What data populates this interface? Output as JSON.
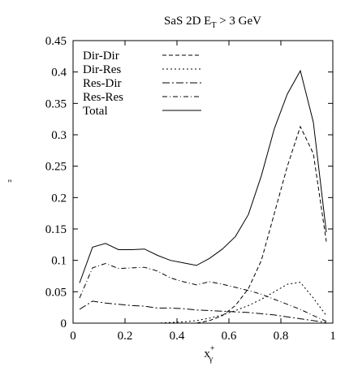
{
  "chart_data": {
    "type": "line",
    "title": "SaS 2D E",
    "title_sub": "T",
    "title_rest": " > 3 GeV",
    "ylabel": "\"",
    "xlabel": "x",
    "xlabel_sup": "+",
    "xlabel_sub": "γ",
    "xlim": [
      0,
      1
    ],
    "ylim": [
      0,
      0.45
    ],
    "x_ticks": [
      "0",
      "0.2",
      "0.4",
      "0.6",
      "0.8",
      "1"
    ],
    "y_ticks": [
      "0",
      "0.05",
      "0.1",
      "0.15",
      "0.2",
      "0.25",
      "0.3",
      "0.35",
      "0.4",
      "0.45"
    ],
    "grid": false,
    "legend_position": "top-left",
    "x": [
      0.025,
      0.075,
      0.125,
      0.175,
      0.225,
      0.275,
      0.325,
      0.375,
      0.425,
      0.475,
      0.525,
      0.575,
      0.625,
      0.675,
      0.725,
      0.775,
      0.825,
      0.875,
      0.925,
      0.975
    ],
    "series": [
      {
        "name": "Dir-Dir",
        "dash": "5,3",
        "values": [
          0.0,
          0.0,
          0.0,
          0.0,
          0.0,
          0.0,
          0.0,
          0.0,
          0.0,
          0.0,
          0.004,
          0.012,
          0.028,
          0.055,
          0.1,
          0.175,
          0.25,
          0.313,
          0.27,
          0.13
        ]
      },
      {
        "name": "Dir-Res",
        "dash": "2,3",
        "values": [
          0.0,
          0.0,
          0.0,
          0.0,
          0.0,
          0.0,
          0.0,
          0.001,
          0.002,
          0.004,
          0.008,
          0.013,
          0.02,
          0.028,
          0.038,
          0.05,
          0.062,
          0.065,
          0.04,
          0.012
        ]
      },
      {
        "name": "Res-Dir",
        "dash": "9,3,2,3",
        "values": [
          0.022,
          0.035,
          0.032,
          0.03,
          0.028,
          0.027,
          0.024,
          0.024,
          0.023,
          0.021,
          0.02,
          0.019,
          0.018,
          0.017,
          0.015,
          0.013,
          0.01,
          0.007,
          0.004,
          0.001
        ]
      },
      {
        "name": "Res-Res",
        "dash": "6,3,1,3",
        "values": [
          0.04,
          0.088,
          0.095,
          0.087,
          0.088,
          0.089,
          0.083,
          0.072,
          0.066,
          0.061,
          0.066,
          0.062,
          0.057,
          0.052,
          0.046,
          0.038,
          0.03,
          0.022,
          0.012,
          0.003
        ]
      },
      {
        "name": "Total",
        "dash": "",
        "values": [
          0.064,
          0.121,
          0.127,
          0.117,
          0.117,
          0.118,
          0.108,
          0.1,
          0.096,
          0.092,
          0.103,
          0.118,
          0.138,
          0.173,
          0.235,
          0.31,
          0.365,
          0.402,
          0.32,
          0.145
        ]
      }
    ]
  }
}
